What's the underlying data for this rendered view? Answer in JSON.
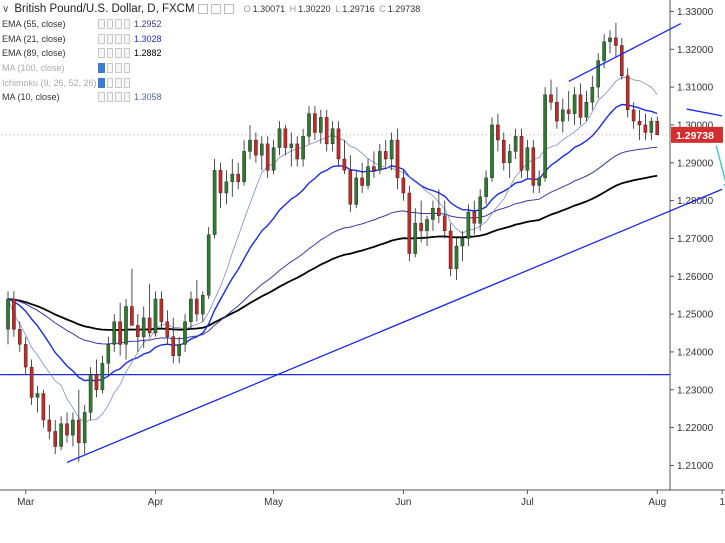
{
  "header": {
    "symbol_title": "British Pound/U.S. Dollar, D, FXCM",
    "ohlc": [
      {
        "key": "O",
        "value": "1.30071"
      },
      {
        "key": "H",
        "value": "1.30220"
      },
      {
        "key": "L",
        "value": "1.29716"
      },
      {
        "key": "C",
        "value": "1.29738"
      }
    ]
  },
  "indicators": [
    {
      "label": "EMA (55, close)",
      "value": "1.2952",
      "color": "#3a37a8",
      "dim": false
    },
    {
      "label": "EMA (21, close)",
      "value": "1.3028",
      "color": "#1a2be0",
      "dim": false
    },
    {
      "label": "EMA (89, close)",
      "value": "1.2882",
      "color": "#000000",
      "dim": false
    },
    {
      "label": "MA (100, close)",
      "value": "",
      "color": "#999999",
      "dim": true
    },
    {
      "label": "Ichimoku (9, 26, 52, 26)",
      "value": "",
      "color": "#999999",
      "dim": true
    },
    {
      "label": "MA (10, close)",
      "value": "1.3058",
      "color": "#5566aa",
      "dim": false
    }
  ],
  "colors": {
    "up_candle": "#2f7a2f",
    "down_candle": "#c62828",
    "trendline": "#1a2be0",
    "forecast_arrow": "#2bc0d9",
    "price_tag": "#d32f2f",
    "axis_text": "#333333"
  },
  "chart_data": {
    "type": "candlestick",
    "title": "British Pound/U.S. Dollar, D, FXCM",
    "ylim": [
      1.2035,
      1.3325
    ],
    "y_ticks": [
      "1.33000",
      "1.32000",
      "1.31000",
      "1.30000",
      "1.29000",
      "1.28000",
      "1.27000",
      "1.26000",
      "1.25000",
      "1.24000",
      "1.23000",
      "1.22000",
      "1.21000"
    ],
    "y_tick_values": [
      1.33,
      1.32,
      1.31,
      1.3,
      1.29,
      1.28,
      1.27,
      1.26,
      1.25,
      1.24,
      1.23,
      1.22,
      1.21
    ],
    "x_labels": [
      {
        "label": "Mar",
        "index": 3
      },
      {
        "label": "Apr",
        "index": 25
      },
      {
        "label": "May",
        "index": 45
      },
      {
        "label": "Jun",
        "index": 67
      },
      {
        "label": "Jul",
        "index": 88
      },
      {
        "label": "Aug",
        "index": 110
      },
      {
        "label": "1",
        "index": 121
      }
    ],
    "last_price": "1.29738",
    "candles": [
      [
        1.246,
        1.256,
        1.242,
        1.254
      ],
      [
        1.254,
        1.256,
        1.244,
        1.246
      ],
      [
        1.246,
        1.248,
        1.24,
        1.242
      ],
      [
        1.242,
        1.244,
        1.234,
        1.236
      ],
      [
        1.236,
        1.238,
        1.226,
        1.228
      ],
      [
        1.228,
        1.231,
        1.224,
        1.229
      ],
      [
        1.229,
        1.23,
        1.22,
        1.222
      ],
      [
        1.222,
        1.226,
        1.217,
        1.219
      ],
      [
        1.219,
        1.222,
        1.213,
        1.215
      ],
      [
        1.215,
        1.223,
        1.214,
        1.221
      ],
      [
        1.221,
        1.224,
        1.216,
        1.218
      ],
      [
        1.218,
        1.224,
        1.215,
        1.222
      ],
      [
        1.222,
        1.23,
        1.211,
        1.216
      ],
      [
        1.216,
        1.226,
        1.213,
        1.224
      ],
      [
        1.224,
        1.236,
        1.222,
        1.234
      ],
      [
        1.234,
        1.238,
        1.228,
        1.23
      ],
      [
        1.23,
        1.239,
        1.229,
        1.237
      ],
      [
        1.237,
        1.244,
        1.234,
        1.242
      ],
      [
        1.242,
        1.25,
        1.24,
        1.248
      ],
      [
        1.248,
        1.253,
        1.239,
        1.242
      ],
      [
        1.242,
        1.254,
        1.238,
        1.252
      ],
      [
        1.252,
        1.262,
        1.248,
        1.247
      ],
      [
        1.247,
        1.25,
        1.24,
        1.244
      ],
      [
        1.244,
        1.252,
        1.241,
        1.249
      ],
      [
        1.249,
        1.258,
        1.244,
        1.245
      ],
      [
        1.245,
        1.256,
        1.244,
        1.254
      ],
      [
        1.254,
        1.256,
        1.246,
        1.248
      ],
      [
        1.248,
        1.251,
        1.242,
        1.244
      ],
      [
        1.244,
        1.249,
        1.237,
        1.239
      ],
      [
        1.239,
        1.244,
        1.237,
        1.242
      ],
      [
        1.242,
        1.25,
        1.24,
        1.248
      ],
      [
        1.248,
        1.256,
        1.246,
        1.254
      ],
      [
        1.254,
        1.259,
        1.248,
        1.25
      ],
      [
        1.25,
        1.256,
        1.248,
        1.255
      ],
      [
        1.255,
        1.273,
        1.254,
        1.271
      ],
      [
        1.271,
        1.291,
        1.27,
        1.288
      ],
      [
        1.288,
        1.29,
        1.278,
        1.282
      ],
      [
        1.282,
        1.288,
        1.279,
        1.285
      ],
      [
        1.285,
        1.291,
        1.281,
        1.287
      ],
      [
        1.287,
        1.29,
        1.283,
        1.285
      ],
      [
        1.285,
        1.296,
        1.284,
        1.293
      ],
      [
        1.293,
        1.3,
        1.291,
        1.296
      ],
      [
        1.296,
        1.298,
        1.29,
        1.292
      ],
      [
        1.292,
        1.297,
        1.288,
        1.295
      ],
      [
        1.295,
        1.297,
        1.286,
        1.288
      ],
      [
        1.288,
        1.296,
        1.287,
        1.294
      ],
      [
        1.294,
        1.301,
        1.292,
        1.299
      ],
      [
        1.299,
        1.3,
        1.292,
        1.294
      ],
      [
        1.294,
        1.298,
        1.289,
        1.295
      ],
      [
        1.295,
        1.297,
        1.289,
        1.291
      ],
      [
        1.291,
        1.299,
        1.289,
        1.297
      ],
      [
        1.297,
        1.305,
        1.295,
        1.303
      ],
      [
        1.303,
        1.305,
        1.296,
        1.298
      ],
      [
        1.298,
        1.304,
        1.295,
        1.302
      ],
      [
        1.302,
        1.304,
        1.293,
        1.295
      ],
      [
        1.295,
        1.301,
        1.293,
        1.299
      ],
      [
        1.299,
        1.301,
        1.289,
        1.291
      ],
      [
        1.291,
        1.296,
        1.287,
        1.288
      ],
      [
        1.288,
        1.292,
        1.277,
        1.279
      ],
      [
        1.279,
        1.288,
        1.278,
        1.286
      ],
      [
        1.286,
        1.29,
        1.282,
        1.284
      ],
      [
        1.284,
        1.291,
        1.283,
        1.289
      ],
      [
        1.289,
        1.293,
        1.286,
        1.288
      ],
      [
        1.288,
        1.295,
        1.287,
        1.293
      ],
      [
        1.293,
        1.296,
        1.289,
        1.291
      ],
      [
        1.291,
        1.298,
        1.288,
        1.296
      ],
      [
        1.296,
        1.299,
        1.283,
        1.286
      ],
      [
        1.286,
        1.288,
        1.28,
        1.282
      ],
      [
        1.282,
        1.284,
        1.264,
        1.266
      ],
      [
        1.266,
        1.278,
        1.265,
        1.274
      ],
      [
        1.274,
        1.28,
        1.269,
        1.272
      ],
      [
        1.272,
        1.276,
        1.268,
        1.275
      ],
      [
        1.275,
        1.28,
        1.272,
        1.278
      ],
      [
        1.278,
        1.283,
        1.274,
        1.276
      ],
      [
        1.276,
        1.28,
        1.27,
        1.272
      ],
      [
        1.272,
        1.274,
        1.26,
        1.262
      ],
      [
        1.262,
        1.27,
        1.259,
        1.268
      ],
      [
        1.268,
        1.272,
        1.264,
        1.27
      ],
      [
        1.27,
        1.279,
        1.268,
        1.277
      ],
      [
        1.277,
        1.28,
        1.271,
        1.274
      ],
      [
        1.274,
        1.283,
        1.272,
        1.281
      ],
      [
        1.281,
        1.288,
        1.279,
        1.286
      ],
      [
        1.286,
        1.302,
        1.285,
        1.3
      ],
      [
        1.3,
        1.303,
        1.293,
        1.296
      ],
      [
        1.296,
        1.298,
        1.288,
        1.29
      ],
      [
        1.29,
        1.295,
        1.286,
        1.293
      ],
      [
        1.293,
        1.299,
        1.291,
        1.297
      ],
      [
        1.297,
        1.299,
        1.286,
        1.288
      ],
      [
        1.288,
        1.296,
        1.286,
        1.294
      ],
      [
        1.294,
        1.296,
        1.282,
        1.284
      ],
      [
        1.284,
        1.288,
        1.282,
        1.286
      ],
      [
        1.286,
        1.31,
        1.285,
        1.308
      ],
      [
        1.308,
        1.312,
        1.304,
        1.306
      ],
      [
        1.306,
        1.31,
        1.299,
        1.301
      ],
      [
        1.301,
        1.307,
        1.298,
        1.304
      ],
      [
        1.304,
        1.309,
        1.301,
        1.303
      ],
      [
        1.303,
        1.31,
        1.3,
        1.308
      ],
      [
        1.308,
        1.311,
        1.3,
        1.302
      ],
      [
        1.302,
        1.309,
        1.301,
        1.306
      ],
      [
        1.306,
        1.313,
        1.304,
        1.31
      ],
      [
        1.31,
        1.319,
        1.307,
        1.317
      ],
      [
        1.317,
        1.324,
        1.315,
        1.322
      ],
      [
        1.322,
        1.325,
        1.319,
        1.323
      ],
      [
        1.323,
        1.327,
        1.318,
        1.321
      ],
      [
        1.321,
        1.323,
        1.312,
        1.313
      ],
      [
        1.313,
        1.315,
        1.302,
        1.304
      ],
      [
        1.304,
        1.306,
        1.299,
        1.301
      ],
      [
        1.301,
        1.304,
        1.296,
        1.3
      ],
      [
        1.3,
        1.303,
        1.296,
        1.298
      ],
      [
        1.298,
        1.302,
        1.296,
        1.301
      ],
      [
        1.301,
        1.3022,
        1.2972,
        1.2974
      ]
    ],
    "series": [
      {
        "name": "EMA (21, close)",
        "values_note": "computed"
      },
      {
        "name": "EMA (55, close)",
        "values_note": "computed"
      },
      {
        "name": "EMA (89, close)",
        "values_note": "computed"
      },
      {
        "name": "MA (10, close)",
        "values_note": "computed"
      }
    ],
    "horizontal_line": 1.234,
    "trendlines": [
      {
        "from": [
          10,
          1.2108
        ],
        "to": [
          121,
          1.283
        ]
      },
      {
        "from": [
          95,
          1.3115
        ],
        "to": [
          114,
          1.3268
        ]
      },
      {
        "from": [
          115,
          1.3042
        ],
        "to": [
          121,
          1.3024
        ]
      }
    ],
    "forecast_arrow": {
      "from": [
        120,
        1.2945
      ],
      "to": [
        122,
        1.2825
      ]
    }
  }
}
